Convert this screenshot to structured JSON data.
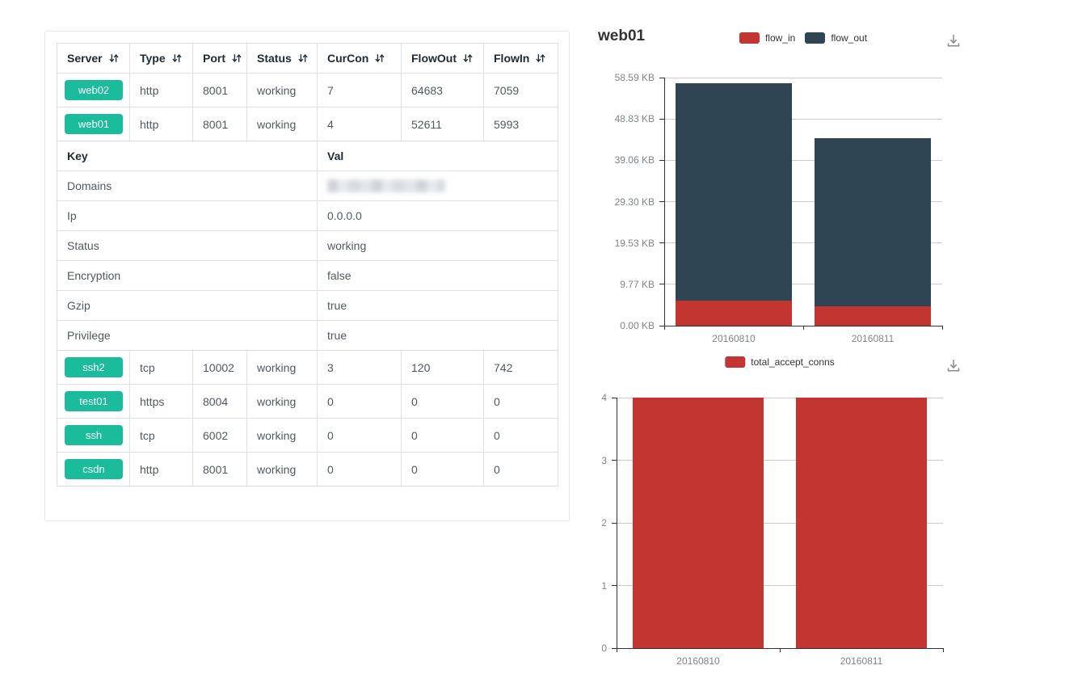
{
  "table": {
    "badge_color": "#1abc9c",
    "columns": [
      {
        "label": "Server",
        "sortable": true
      },
      {
        "label": "Type",
        "sortable": true
      },
      {
        "label": "Port",
        "sortable": true
      },
      {
        "label": "Status",
        "sortable": true
      },
      {
        "label": "CurCon",
        "sortable": true
      },
      {
        "label": "FlowOut",
        "sortable": true
      },
      {
        "label": "FlowIn",
        "sortable": true
      }
    ],
    "rows": [
      {
        "type": "server",
        "name": "web02",
        "cells": [
          "http",
          "8001",
          "working",
          "7",
          "64683",
          "7059"
        ]
      },
      {
        "type": "server",
        "name": "web01",
        "cells": [
          "http",
          "8001",
          "working",
          "4",
          "52611",
          "5993"
        ]
      },
      {
        "type": "kv_header",
        "key_label": "Key",
        "val_label": "Val"
      },
      {
        "type": "kv",
        "key": "Domains",
        "value": "",
        "redacted": true
      },
      {
        "type": "kv",
        "key": "Ip",
        "value": "0.0.0.0"
      },
      {
        "type": "kv",
        "key": "Status",
        "value": "working"
      },
      {
        "type": "kv",
        "key": "Encryption",
        "value": "false"
      },
      {
        "type": "kv",
        "key": "Gzip",
        "value": "true"
      },
      {
        "type": "kv",
        "key": "Privilege",
        "value": "true"
      },
      {
        "type": "server",
        "name": "ssh2",
        "cells": [
          "tcp",
          "10002",
          "working",
          "3",
          "120",
          "742"
        ]
      },
      {
        "type": "server",
        "name": "test01",
        "cells": [
          "https",
          "8004",
          "working",
          "0",
          "0",
          "0"
        ]
      },
      {
        "type": "server",
        "name": "ssh",
        "cells": [
          "tcp",
          "6002",
          "working",
          "0",
          "0",
          "0"
        ]
      },
      {
        "type": "server",
        "name": "csdn",
        "cells": [
          "http",
          "8001",
          "working",
          "0",
          "0",
          "0"
        ]
      }
    ]
  },
  "chart_data": [
    {
      "type": "bar",
      "stacked": true,
      "title": "web01",
      "categories": [
        "20160810",
        "20160811"
      ],
      "series": [
        {
          "name": "flow_in",
          "color": "#c23531",
          "values": [
            5993,
            4700
          ]
        },
        {
          "name": "flow_out",
          "color": "#2f4554",
          "values": [
            52611,
            40600
          ]
        }
      ],
      "y_axis": {
        "ticks": [
          "0.00 KB",
          "9.77 KB",
          "19.53 KB",
          "29.30 KB",
          "39.06 KB",
          "48.83 KB",
          "58.59 KB"
        ],
        "tick_values": [
          0,
          10000,
          20000,
          30000,
          40000,
          50000,
          60000
        ],
        "max": 60000
      },
      "legend_position": "top",
      "grid": true,
      "toolbox": "save-as-image"
    },
    {
      "type": "bar",
      "stacked": false,
      "title": "",
      "categories": [
        "20160810",
        "20160811"
      ],
      "series": [
        {
          "name": "total_accept_conns",
          "color": "#c23531",
          "values": [
            4,
            4
          ]
        }
      ],
      "y_axis": {
        "ticks": [
          "0",
          "1",
          "2",
          "3",
          "4"
        ],
        "tick_values": [
          0,
          1,
          2,
          3,
          4
        ],
        "max": 4
      },
      "legend_position": "top",
      "grid": true,
      "toolbox": "save-as-image"
    }
  ]
}
